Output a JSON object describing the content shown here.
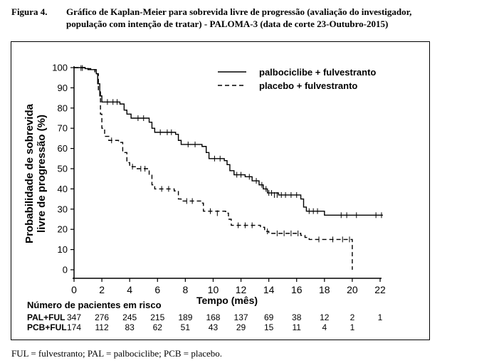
{
  "figure": {
    "label": "Figura 4.",
    "title_line1": "Gráfico de Kaplan-Meier para sobrevida livre de progressão (avaliação do investigador,",
    "title_line2": "população com intenção de tratar) - PALOMA-3 (data de corte 23-Outubro-2015)",
    "footnote": "FUL = fulvestranto; PAL = palbociclibe; PCB = placebo."
  },
  "chart_data": {
    "type": "line",
    "subtype": "kaplan-meier-step",
    "xlabel": "Tempo (mês)",
    "ylabel_line1": "Probabilidade de sobrevida",
    "ylabel_line2": "livre de progressão (%)",
    "xlim": [
      0,
      22
    ],
    "ylim": [
      0,
      100
    ],
    "xticks": [
      0,
      2,
      4,
      6,
      8,
      10,
      12,
      14,
      16,
      18,
      20,
      22
    ],
    "yticks": [
      0,
      10,
      20,
      30,
      40,
      50,
      60,
      70,
      80,
      90,
      100
    ],
    "grid": false,
    "legend_position": "top-right",
    "series": [
      {
        "name": "palbociclibe + fulvestranto",
        "line_style": "solid",
        "steps": [
          [
            0,
            100
          ],
          [
            0.8,
            99.5
          ],
          [
            1.2,
            99
          ],
          [
            1.6,
            97
          ],
          [
            1.7,
            92
          ],
          [
            1.85,
            86
          ],
          [
            2.0,
            83
          ],
          [
            3.3,
            82
          ],
          [
            3.6,
            79
          ],
          [
            3.8,
            77
          ],
          [
            4.1,
            75
          ],
          [
            5.4,
            73
          ],
          [
            5.6,
            70
          ],
          [
            5.8,
            68
          ],
          [
            7.3,
            67
          ],
          [
            7.5,
            64
          ],
          [
            7.7,
            62
          ],
          [
            9.2,
            61
          ],
          [
            9.5,
            58
          ],
          [
            9.7,
            55
          ],
          [
            10.8,
            54
          ],
          [
            11.0,
            52
          ],
          [
            11.2,
            49
          ],
          [
            11.5,
            47
          ],
          [
            12.3,
            46
          ],
          [
            12.8,
            44
          ],
          [
            13.3,
            42
          ],
          [
            13.6,
            40
          ],
          [
            13.9,
            38
          ],
          [
            14.7,
            37
          ],
          [
            16.3,
            35
          ],
          [
            16.5,
            31
          ],
          [
            16.7,
            29
          ],
          [
            17.7,
            29
          ],
          [
            18.0,
            27
          ],
          [
            22.2,
            27
          ]
        ],
        "censored": [
          [
            0.5,
            99.8
          ],
          [
            2.4,
            83
          ],
          [
            2.8,
            83
          ],
          [
            3.1,
            83
          ],
          [
            4.6,
            75
          ],
          [
            5.0,
            75
          ],
          [
            6.2,
            68
          ],
          [
            6.7,
            68
          ],
          [
            7.0,
            68
          ],
          [
            8.2,
            62
          ],
          [
            8.7,
            62
          ],
          [
            10.1,
            55
          ],
          [
            10.5,
            55
          ],
          [
            11.7,
            47
          ],
          [
            12.0,
            47
          ],
          [
            12.6,
            46
          ],
          [
            13.1,
            44
          ],
          [
            13.5,
            42
          ],
          [
            13.8,
            40
          ],
          [
            14.0,
            38
          ],
          [
            14.2,
            38
          ],
          [
            14.4,
            37
          ],
          [
            14.6,
            37
          ],
          [
            14.9,
            37
          ],
          [
            15.2,
            37
          ],
          [
            15.6,
            37
          ],
          [
            16.0,
            37
          ],
          [
            16.9,
            29
          ],
          [
            17.2,
            29
          ],
          [
            17.5,
            29
          ],
          [
            19.2,
            27
          ],
          [
            19.6,
            27
          ],
          [
            20.3,
            27
          ],
          [
            21.7,
            27
          ],
          [
            22.1,
            27
          ]
        ]
      },
      {
        "name": "placebo + fulvestranto",
        "line_style": "dashed",
        "steps": [
          [
            0,
            100
          ],
          [
            1.0,
            99
          ],
          [
            1.5,
            97
          ],
          [
            1.75,
            88
          ],
          [
            1.9,
            77
          ],
          [
            2.0,
            70
          ],
          [
            2.2,
            66
          ],
          [
            2.5,
            64
          ],
          [
            3.2,
            63
          ],
          [
            3.5,
            58
          ],
          [
            3.8,
            53
          ],
          [
            4.0,
            51
          ],
          [
            4.5,
            50
          ],
          [
            5.4,
            47
          ],
          [
            5.6,
            42
          ],
          [
            5.8,
            40
          ],
          [
            7.2,
            39
          ],
          [
            7.5,
            35
          ],
          [
            7.7,
            34
          ],
          [
            9.1,
            33
          ],
          [
            9.3,
            29
          ],
          [
            10.9,
            28
          ],
          [
            11.1,
            25
          ],
          [
            11.3,
            22
          ],
          [
            13.4,
            21
          ],
          [
            13.7,
            19
          ],
          [
            14.0,
            18
          ],
          [
            16.3,
            17
          ],
          [
            16.6,
            16
          ],
          [
            16.9,
            15
          ],
          [
            20.0,
            15
          ],
          [
            20.0,
            0
          ]
        ],
        "censored": [
          [
            0.6,
            99.8
          ],
          [
            2.7,
            64
          ],
          [
            4.2,
            51
          ],
          [
            4.8,
            50
          ],
          [
            5.1,
            50
          ],
          [
            6.3,
            40
          ],
          [
            6.8,
            40
          ],
          [
            8.1,
            34
          ],
          [
            8.5,
            34
          ],
          [
            9.8,
            29
          ],
          [
            10.3,
            28
          ],
          [
            11.8,
            22
          ],
          [
            12.3,
            22
          ],
          [
            12.8,
            22
          ],
          [
            13.9,
            19
          ],
          [
            14.6,
            18
          ],
          [
            15.1,
            18
          ],
          [
            15.6,
            18
          ],
          [
            16.1,
            18
          ],
          [
            17.6,
            15
          ],
          [
            18.6,
            15
          ],
          [
            19.3,
            15
          ],
          [
            19.8,
            15
          ]
        ]
      }
    ],
    "at_risk": {
      "title": "Número de pacientes em risco",
      "rows": [
        {
          "label": "PAL+FUL",
          "counts": [
            "347",
            "276",
            "245",
            "215",
            "189",
            "168",
            "137",
            "69",
            "38",
            "12",
            "2",
            "1"
          ]
        },
        {
          "label": "PCB+FUL",
          "counts": [
            "174",
            "112",
            "83",
            "62",
            "51",
            "43",
            "29",
            "15",
            "11",
            "4",
            "1",
            ""
          ]
        }
      ]
    }
  }
}
